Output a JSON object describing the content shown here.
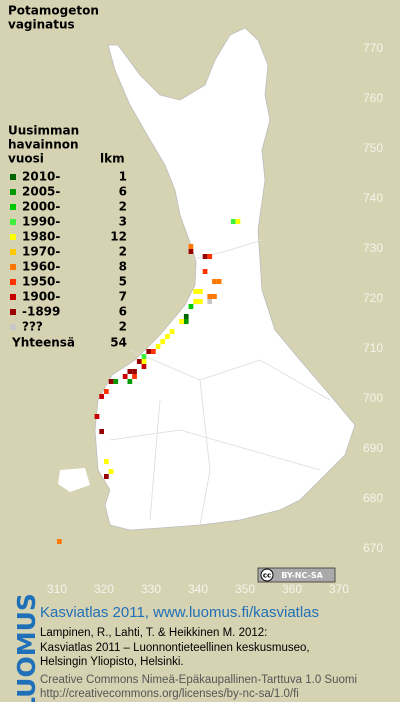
{
  "title": [
    "Potamogeton",
    "vaginatus"
  ],
  "legend": {
    "heading": [
      "Uusimman",
      "havainnon",
      "vuosi"
    ],
    "count_heading": "lkm",
    "items": [
      {
        "label": "2010-",
        "count": 1,
        "color": "#006400"
      },
      {
        "label": "2005-",
        "count": 6,
        "color": "#009a00"
      },
      {
        "label": "2000-",
        "count": 2,
        "color": "#00c800"
      },
      {
        "label": "1990-",
        "count": 3,
        "color": "#3cf03c"
      },
      {
        "label": "1980-",
        "count": 12,
        "color": "#ffff00"
      },
      {
        "label": "1970-",
        "count": 2,
        "color": "#ffc800"
      },
      {
        "label": "1960-",
        "count": 8,
        "color": "#ff7800"
      },
      {
        "label": "1950-",
        "count": 5,
        "color": "#ff3200"
      },
      {
        "label": "1900-",
        "count": 7,
        "color": "#c80000"
      },
      {
        "label": "-1899",
        "count": 6,
        "color": "#960000"
      },
      {
        "label": "???",
        "count": 2,
        "color": "#c8c8c8"
      }
    ],
    "total_label": "Yhteensä",
    "total": 54
  },
  "map": {
    "xlim": [
      300,
      380
    ],
    "ylim": [
      660,
      780
    ],
    "xticks": [
      310,
      320,
      330,
      340,
      350,
      360,
      370
    ],
    "yticks": [
      770,
      760,
      750,
      740,
      730,
      720,
      710,
      700,
      690,
      680,
      670
    ],
    "cells": [
      [
        347,
        735,
        3
      ],
      [
        348,
        735,
        4
      ],
      [
        338,
        730,
        6
      ],
      [
        338,
        729,
        9
      ],
      [
        341,
        728,
        9
      ],
      [
        342,
        728,
        7
      ],
      [
        341,
        725,
        7
      ],
      [
        343,
        723,
        6
      ],
      [
        344,
        723,
        6
      ],
      [
        339,
        721,
        4
      ],
      [
        340,
        721,
        4
      ],
      [
        342,
        720,
        6
      ],
      [
        343,
        720,
        6
      ],
      [
        339,
        719,
        4
      ],
      [
        340,
        719,
        4
      ],
      [
        342,
        719,
        10
      ],
      [
        338,
        718,
        2
      ],
      [
        337,
        716,
        0
      ],
      [
        337,
        715,
        1
      ],
      [
        336,
        715,
        4
      ],
      [
        334,
        713,
        4
      ],
      [
        333,
        712,
        4
      ],
      [
        332,
        711,
        4
      ],
      [
        331,
        710,
        4
      ],
      [
        330,
        709,
        7
      ],
      [
        329,
        709,
        9
      ],
      [
        328,
        708,
        3
      ],
      [
        328,
        707,
        4
      ],
      [
        327,
        707,
        9
      ],
      [
        328,
        706,
        8
      ],
      [
        326,
        705,
        9
      ],
      [
        325,
        705,
        9
      ],
      [
        326,
        704,
        7
      ],
      [
        324,
        704,
        8
      ],
      [
        322,
        703,
        1
      ],
      [
        321,
        703,
        9
      ],
      [
        325,
        703,
        1
      ],
      [
        320,
        701,
        7
      ],
      [
        319,
        700,
        8
      ],
      [
        318,
        696,
        8
      ],
      [
        319,
        693,
        9
      ],
      [
        320,
        687,
        4
      ],
      [
        321,
        685,
        4
      ],
      [
        320,
        684,
        9
      ],
      [
        310,
        671,
        6
      ]
    ]
  },
  "badge": [
    "cc",
    "BY-NC-SA"
  ],
  "footer": {
    "logo": "LUOMUS",
    "atlas": "Kasviatlas 2011, www.luomus.fi/kasviatlas",
    "citation": [
      "Lampinen, R., Lahti, T. & Heikkinen M. 2012:",
      "Kasviatlas 2011 – Luonnontieteellinen keskusmuseo,",
      "Helsingin Yliopisto, Helsinki."
    ],
    "license": [
      "Creative Commons Nimeä-Epäkaupallinen-Tarttuva 1.0 Suomi",
      "http://creativecommons.org/licenses/by-nc-sa/1.0/fi"
    ]
  }
}
